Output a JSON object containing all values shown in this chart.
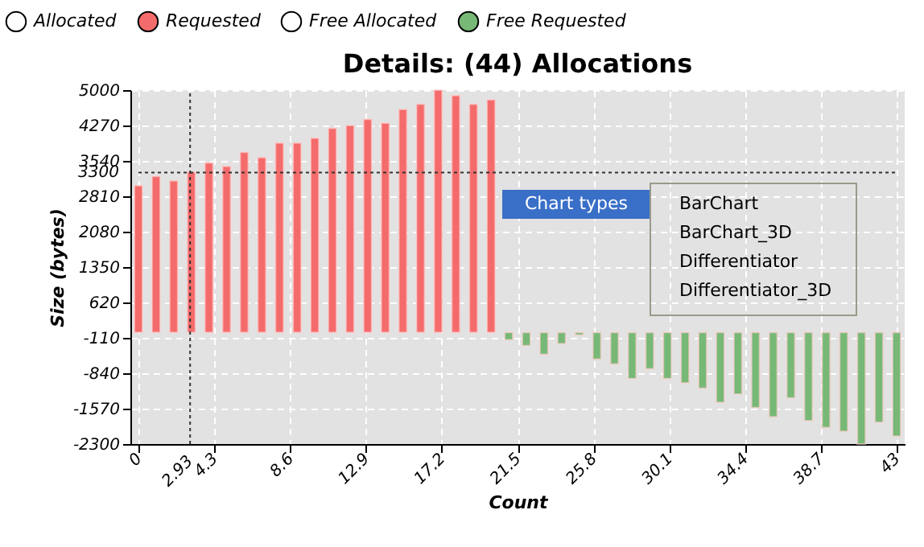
{
  "chart_data": {
    "type": "bar",
    "title": "Details: (44) Allocations",
    "xlabel": "Count",
    "ylabel": "Size (bytes)",
    "x": [
      0,
      1,
      2,
      3,
      4,
      5,
      6,
      7,
      8,
      9,
      10,
      11,
      12,
      13,
      14,
      15,
      16,
      17,
      18,
      19,
      20,
      21,
      22,
      23,
      24,
      25,
      26,
      27,
      28,
      29,
      30,
      31,
      32,
      33,
      34,
      35,
      36,
      37,
      38,
      39,
      40,
      41,
      42,
      43
    ],
    "series": [
      {
        "name": "Allocated",
        "color": "#ffffff",
        "values": [
          null,
          null,
          null,
          null,
          null,
          null,
          null,
          null,
          null,
          null,
          null,
          null,
          null,
          null,
          null,
          null,
          null,
          null,
          null,
          null,
          null,
          null,
          null,
          null,
          null,
          null,
          null,
          null,
          null,
          null,
          null,
          null,
          null,
          null,
          null,
          null,
          null,
          null,
          null,
          null,
          null,
          null,
          null,
          null
        ]
      },
      {
        "name": "Requested",
        "color": "#f46b6b",
        "values": [
          3030,
          3220,
          3130,
          3310,
          3500,
          3430,
          3720,
          3610,
          3910,
          3910,
          4010,
          4210,
          4270,
          4400,
          4320,
          4600,
          4710,
          5000,
          4890,
          4710,
          4800,
          null,
          null,
          null,
          null,
          null,
          null,
          null,
          null,
          null,
          null,
          null,
          null,
          null,
          null,
          null,
          null,
          null,
          null,
          null,
          null,
          null,
          null,
          null
        ]
      },
      {
        "name": "Free Allocated",
        "color": "#ffffff",
        "values": [
          null,
          null,
          null,
          null,
          null,
          null,
          null,
          null,
          null,
          null,
          null,
          null,
          null,
          null,
          null,
          null,
          null,
          null,
          null,
          null,
          null,
          null,
          null,
          null,
          null,
          null,
          null,
          null,
          null,
          null,
          null,
          null,
          null,
          null,
          null,
          null,
          null,
          null,
          null,
          null,
          null,
          null,
          null,
          null
        ]
      },
      {
        "name": "Free Requested",
        "color": "#77b877",
        "values": [
          null,
          null,
          null,
          null,
          null,
          null,
          null,
          null,
          null,
          null,
          null,
          null,
          null,
          null,
          null,
          null,
          null,
          null,
          null,
          null,
          null,
          -150,
          -270,
          -450,
          -230,
          -50,
          -550,
          -650,
          -950,
          -750,
          -950,
          -1040,
          -1150,
          -1440,
          -1270,
          -1550,
          -1740,
          -1350,
          -1820,
          -1960,
          -2040,
          -2300,
          -1850,
          -2140
        ]
      }
    ],
    "xlim": [
      0,
      43
    ],
    "xticks": [
      0,
      4.3,
      8.6,
      12.9,
      17.2,
      21.5,
      25.8,
      30.1,
      34.4,
      38.7,
      43
    ],
    "ylim": [
      -2300,
      5000
    ],
    "yticks": [
      -2300,
      -1570,
      -840,
      -110,
      620,
      1350,
      2080,
      2810,
      3540,
      4270,
      5000
    ],
    "ref_lines": [
      {
        "axis": "x",
        "value": 2.93,
        "label": "2.93",
        "color": "#333333",
        "line_style": "dotted"
      },
      {
        "axis": "y",
        "value": 3300,
        "label": "3300",
        "color": "#333333",
        "line_style": "dotted"
      }
    ],
    "grid": true,
    "legend": "top left",
    "annotations": [
      "Chart types",
      "BarChart",
      "BarChart_3D",
      "Differentiator",
      "Differentiator_3D"
    ]
  }
}
